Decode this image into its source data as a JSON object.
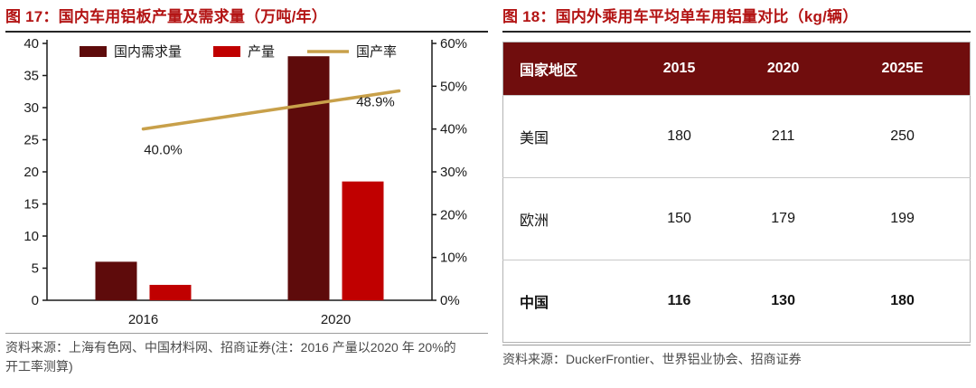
{
  "colors": {
    "title_red": "#b31414",
    "dark_maroon_bar": "#5e0b0b",
    "bright_red_bar": "#c00000",
    "gold_line": "#c8a04a",
    "table_header_maroon": "#700d0d",
    "axis_black": "#1a1a1a",
    "source_gray": "#4a4a4a"
  },
  "fig17": {
    "title": "图 17：国内车用铝板产量及需求量（万吨/年）",
    "source": "资料来源：上海有色网、中国材料网、招商证券(注：2016 产量以2020 年 20%的开工率测算)"
  },
  "fig18": {
    "title": "图 18：国内外乘用车平均单车用铝量对比（kg/辆）",
    "source": "资料来源：DuckerFrontier、世界铝业协会、招商证券",
    "table": {
      "headers": [
        "国家地区",
        "2015",
        "2020",
        "2025E"
      ],
      "rows": [
        {
          "region": "美国",
          "values": [
            "180",
            "211",
            "250"
          ],
          "bold": false
        },
        {
          "region": "欧洲",
          "values": [
            "150",
            "179",
            "199"
          ],
          "bold": false
        },
        {
          "region": "中国",
          "values": [
            "116",
            "130",
            "180"
          ],
          "bold": true
        }
      ]
    }
  },
  "chart_data": [
    {
      "type": "bar",
      "title": "国内车用铝板产量及需求量（万吨/年）",
      "categories": [
        "2016",
        "2020"
      ],
      "series": [
        {
          "name": "国内需求量",
          "kind": "bar",
          "axis": "left",
          "color": "#5e0b0b",
          "values": [
            6,
            38
          ]
        },
        {
          "name": "产量",
          "kind": "bar",
          "axis": "left",
          "color": "#c00000",
          "values": [
            2.4,
            18.5
          ]
        },
        {
          "name": "国产率",
          "kind": "line",
          "axis": "right",
          "color": "#c8a04a",
          "values": [
            40.0,
            48.9
          ],
          "point_labels": [
            "40.0%",
            "48.9%"
          ]
        }
      ],
      "left_axis": {
        "min": 0,
        "max": 40,
        "step": 5
      },
      "right_axis": {
        "min": 0,
        "max": 60,
        "step": 10,
        "suffix": "%"
      },
      "legend_position": "top",
      "grid": false
    },
    {
      "type": "table",
      "title": "国内外乘用车平均单车用铝量对比（kg/辆）",
      "columns": [
        "国家地区",
        "2015",
        "2020",
        "2025E"
      ],
      "rows": [
        [
          "美国",
          180,
          211,
          250
        ],
        [
          "欧洲",
          150,
          179,
          199
        ],
        [
          "中国",
          116,
          130,
          180
        ]
      ]
    }
  ]
}
